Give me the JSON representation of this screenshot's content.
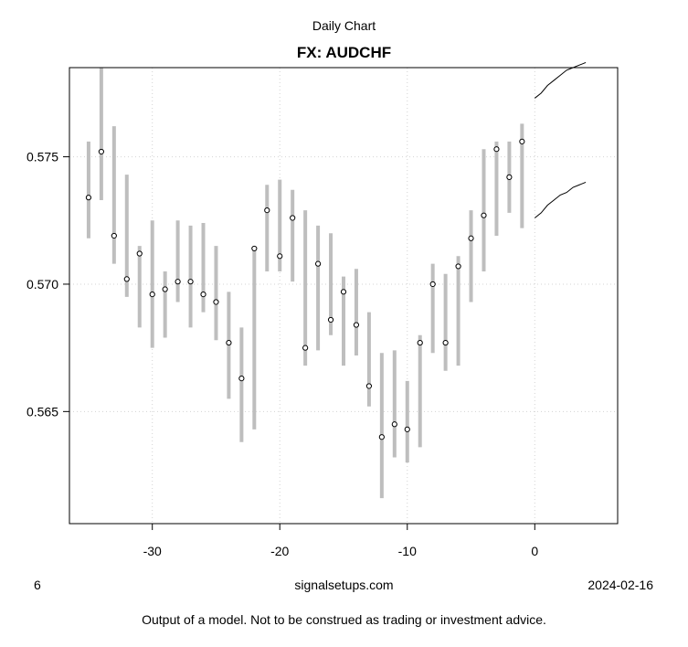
{
  "header": {
    "supertitle": "Daily Chart",
    "title": "FX: AUDCHF"
  },
  "footer": {
    "left": "6",
    "center": "signalsetups.com",
    "right": "2024-02-16",
    "disclaimer": "Output of a model. Not to be construed as trading or investment advice."
  },
  "chart_data": {
    "type": "range-dot",
    "xlim": [
      -36.5,
      6.5
    ],
    "ylim": [
      0.5606,
      0.5785
    ],
    "xticks": [
      -30,
      -20,
      -10,
      0
    ],
    "yticks": [
      0.565,
      0.57,
      0.575
    ],
    "ytick_labels": [
      "0.565",
      "0.570",
      "0.575"
    ],
    "grid": true,
    "colors": {
      "range": "#bebebe",
      "point": "#000000",
      "forecast": "#000000",
      "grid": "#d3d3d3"
    },
    "series": [
      {
        "x": -35,
        "low": 0.5718,
        "high": 0.5756,
        "close": 0.5734
      },
      {
        "x": -34,
        "low": 0.5733,
        "high": 0.5785,
        "close": 0.5752
      },
      {
        "x": -33,
        "low": 0.5708,
        "high": 0.5762,
        "close": 0.5719
      },
      {
        "x": -32,
        "low": 0.5695,
        "high": 0.5743,
        "close": 0.5702
      },
      {
        "x": -31,
        "low": 0.5683,
        "high": 0.5715,
        "close": 0.5712
      },
      {
        "x": -30,
        "low": 0.5675,
        "high": 0.5725,
        "close": 0.5696
      },
      {
        "x": -29,
        "low": 0.5679,
        "high": 0.5705,
        "close": 0.5698
      },
      {
        "x": -28,
        "low": 0.5693,
        "high": 0.5725,
        "close": 0.5701
      },
      {
        "x": -27,
        "low": 0.5683,
        "high": 0.5723,
        "close": 0.5701
      },
      {
        "x": -26,
        "low": 0.5689,
        "high": 0.5724,
        "close": 0.5696
      },
      {
        "x": -25,
        "low": 0.5678,
        "high": 0.5715,
        "close": 0.5693
      },
      {
        "x": -24,
        "low": 0.5655,
        "high": 0.5697,
        "close": 0.5677
      },
      {
        "x": -23,
        "low": 0.5638,
        "high": 0.5683,
        "close": 0.5663
      },
      {
        "x": -22,
        "low": 0.5643,
        "high": 0.5714,
        "close": 0.5714
      },
      {
        "x": -21,
        "low": 0.5705,
        "high": 0.5739,
        "close": 0.5729
      },
      {
        "x": -20,
        "low": 0.5705,
        "high": 0.5741,
        "close": 0.5711
      },
      {
        "x": -19,
        "low": 0.5701,
        "high": 0.5737,
        "close": 0.5726
      },
      {
        "x": -18,
        "low": 0.5668,
        "high": 0.5729,
        "close": 0.5675
      },
      {
        "x": -17,
        "low": 0.5674,
        "high": 0.5723,
        "close": 0.5708
      },
      {
        "x": -16,
        "low": 0.568,
        "high": 0.572,
        "close": 0.5686
      },
      {
        "x": -15,
        "low": 0.5668,
        "high": 0.5703,
        "close": 0.5697
      },
      {
        "x": -14,
        "low": 0.5672,
        "high": 0.5706,
        "close": 0.5684
      },
      {
        "x": -13,
        "low": 0.5652,
        "high": 0.5689,
        "close": 0.566
      },
      {
        "x": -12,
        "low": 0.5616,
        "high": 0.5673,
        "close": 0.564
      },
      {
        "x": -11,
        "low": 0.5632,
        "high": 0.5674,
        "close": 0.5645
      },
      {
        "x": -10,
        "low": 0.563,
        "high": 0.5662,
        "close": 0.5643
      },
      {
        "x": -9,
        "low": 0.5636,
        "high": 0.568,
        "close": 0.5677
      },
      {
        "x": -8,
        "low": 0.5673,
        "high": 0.5708,
        "close": 0.57
      },
      {
        "x": -7,
        "low": 0.5666,
        "high": 0.5704,
        "close": 0.5677
      },
      {
        "x": -6,
        "low": 0.5668,
        "high": 0.5711,
        "close": 0.5707
      },
      {
        "x": -5,
        "low": 0.5693,
        "high": 0.5729,
        "close": 0.5718
      },
      {
        "x": -4,
        "low": 0.5705,
        "high": 0.5753,
        "close": 0.5727
      },
      {
        "x": -3,
        "low": 0.5719,
        "high": 0.5756,
        "close": 0.5753
      },
      {
        "x": -2,
        "low": 0.5728,
        "high": 0.5756,
        "close": 0.5742
      },
      {
        "x": -1,
        "low": 0.5722,
        "high": 0.5763,
        "close": 0.5756
      }
    ],
    "forecast": {
      "upper": [
        [
          0,
          0.5773
        ],
        [
          0.5,
          0.5775
        ],
        [
          1,
          0.5778
        ],
        [
          1.5,
          0.578
        ],
        [
          2,
          0.5782
        ],
        [
          2.5,
          0.5784
        ],
        [
          3,
          0.5785
        ],
        [
          3.5,
          0.5786
        ],
        [
          4,
          0.5787
        ]
      ],
      "lower": [
        [
          0,
          0.5726
        ],
        [
          0.5,
          0.5728
        ],
        [
          1,
          0.5731
        ],
        [
          1.5,
          0.5733
        ],
        [
          2,
          0.5735
        ],
        [
          2.5,
          0.5736
        ],
        [
          3,
          0.5738
        ],
        [
          3.5,
          0.5739
        ],
        [
          4,
          0.574
        ]
      ]
    }
  }
}
